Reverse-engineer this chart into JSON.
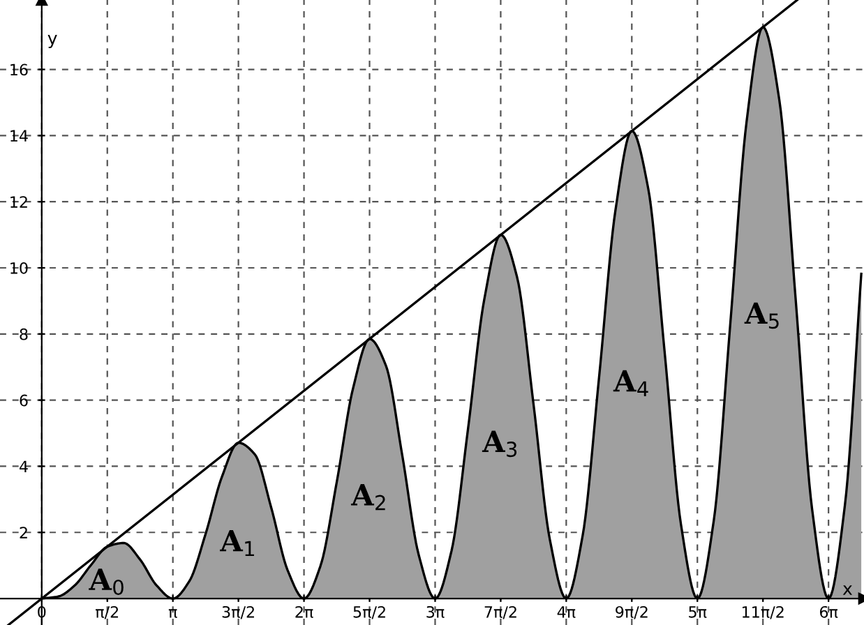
{
  "chart_data": {
    "type": "area",
    "xlabel": "x",
    "ylabel": "y",
    "xlim": [
      -1.0,
      19.7
    ],
    "ylim": [
      -0.8,
      18.1
    ],
    "xticks": [
      {
        "value": 0,
        "label": "0"
      },
      {
        "value": 1.571,
        "label": "π/2"
      },
      {
        "value": 3.142,
        "label": "π"
      },
      {
        "value": 4.712,
        "label": "3π/2"
      },
      {
        "value": 6.283,
        "label": "2π"
      },
      {
        "value": 7.854,
        "label": "5π/2"
      },
      {
        "value": 9.425,
        "label": "3π"
      },
      {
        "value": 10.996,
        "label": "7π/2"
      },
      {
        "value": 12.566,
        "label": "4π"
      },
      {
        "value": 14.137,
        "label": "9π/2"
      },
      {
        "value": 15.708,
        "label": "5π"
      },
      {
        "value": 17.279,
        "label": "11π/2"
      },
      {
        "value": 18.85,
        "label": "6π"
      }
    ],
    "yticks": [
      2,
      4,
      6,
      8,
      10,
      12,
      14,
      16
    ],
    "grid": true,
    "series": [
      {
        "color": "#a0a0a0",
        "x": [
          0,
          0.393,
          0.785,
          1.178,
          1.571,
          1.963,
          2.356,
          2.749,
          3.142,
          3.534,
          3.927,
          4.32,
          4.712,
          5.105,
          5.498,
          5.89,
          6.283,
          6.676,
          7.069,
          7.461,
          7.854,
          8.247,
          8.639,
          9.032,
          9.425,
          9.817,
          10.21,
          10.603,
          10.996,
          11.388,
          11.781,
          12.174,
          12.566,
          12.959,
          13.352,
          13.744,
          14.137,
          14.53,
          14.923,
          15.315,
          15.708,
          16.101,
          16.493,
          16.886,
          17.279,
          17.671,
          18.064,
          18.457,
          18.85,
          19.242,
          19.635
        ],
        "values": [
          0,
          0.06,
          0.39,
          1.01,
          1.57,
          1.68,
          1.18,
          0.4,
          0,
          0.52,
          1.96,
          3.69,
          4.71,
          4.36,
          2.75,
          0.86,
          0,
          0.98,
          3.53,
          6.37,
          7.85,
          7.04,
          4.32,
          1.32,
          0,
          1.44,
          5.1,
          9.05,
          11.0,
          9.72,
          5.89,
          1.78,
          0,
          1.9,
          6.68,
          11.73,
          14.14,
          12.4,
          7.46,
          2.24,
          0,
          2.36,
          8.25,
          14.41,
          17.28,
          15.08,
          9.03,
          2.7,
          0,
          2.82,
          9.82
        ]
      },
      {
        "type": "line",
        "color": "#000000",
        "x": [
          -0.8,
          18.1
        ],
        "values": [
          -0.8,
          18.1
        ]
      }
    ],
    "annotations": [
      "A$_{0}$",
      "A$_{1}$",
      "A$_{2}$",
      "A$_{3}$",
      "A$_{4}$",
      "A$_{5}$"
    ]
  }
}
